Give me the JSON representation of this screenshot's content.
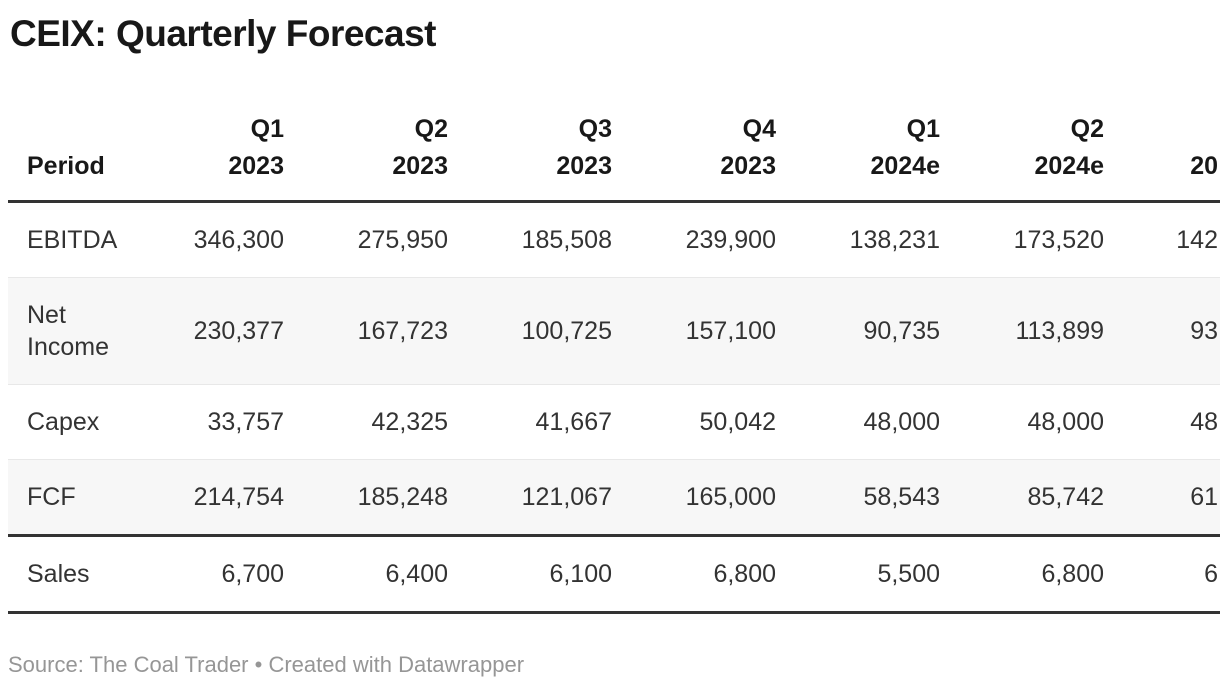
{
  "title": "CEIX: Quarterly Forecast",
  "table": {
    "period_header": "Period",
    "columns": [
      {
        "quarter": "Q1",
        "year": "2023",
        "clipped": false
      },
      {
        "quarter": "Q2",
        "year": "2023",
        "clipped": false
      },
      {
        "quarter": "Q3",
        "year": "2023",
        "clipped": false
      },
      {
        "quarter": "Q4",
        "year": "2023",
        "clipped": false
      },
      {
        "quarter": "Q1",
        "year": "2024e",
        "clipped": false
      },
      {
        "quarter": "Q2",
        "year": "2024e",
        "clipped": false
      },
      {
        "quarter": "",
        "year": "20",
        "clipped": true
      }
    ],
    "rows": [
      {
        "label": "EBITDA",
        "values": [
          "346,300",
          "275,950",
          "185,508",
          "239,900",
          "138,231",
          "173,520",
          "142"
        ],
        "separator": "thin"
      },
      {
        "label": "Net Income",
        "values": [
          "230,377",
          "167,723",
          "100,725",
          "157,100",
          "90,735",
          "113,899",
          "93"
        ],
        "separator": "thin"
      },
      {
        "label": "Capex",
        "values": [
          "33,757",
          "42,325",
          "41,667",
          "50,042",
          "48,000",
          "48,000",
          "48"
        ],
        "separator": "thin"
      },
      {
        "label": "FCF",
        "values": [
          "214,754",
          "185,248",
          "121,067",
          "165,000",
          "58,543",
          "85,742",
          "61"
        ],
        "separator": "thick"
      },
      {
        "label": "Sales",
        "values": [
          "6,700",
          "6,400",
          "6,100",
          "6,800",
          "5,500",
          "6,800",
          "6"
        ],
        "separator": "thick"
      }
    ]
  },
  "footer": {
    "source_prefix": "Source: ",
    "source_name": "The Coal Trader",
    "separator": " • ",
    "attribution": "Created with Datawrapper"
  },
  "colors": {
    "heading_text": "#181818",
    "body_text": "#333333",
    "accent_border": "#333333",
    "stripe": "#f7f7f7",
    "thin_separator": "#e8e8e8",
    "footer_text": "#969696"
  },
  "chart_data": {
    "type": "table",
    "title": "CEIX: Quarterly Forecast",
    "categories": [
      "Q1 2023",
      "Q2 2023",
      "Q3 2023",
      "Q4 2023",
      "Q1 2024e",
      "Q2 2024e"
    ],
    "series": [
      {
        "name": "EBITDA",
        "values": [
          346300,
          275950,
          185508,
          239900,
          138231,
          173520
        ]
      },
      {
        "name": "Net Income",
        "values": [
          230377,
          167723,
          100725,
          157100,
          90735,
          113899
        ]
      },
      {
        "name": "Capex",
        "values": [
          33757,
          42325,
          41667,
          50042,
          48000,
          48000
        ]
      },
      {
        "name": "FCF",
        "values": [
          214754,
          185248,
          121067,
          165000,
          58543,
          85742
        ]
      },
      {
        "name": "Sales",
        "values": [
          6700,
          6400,
          6100,
          6800,
          5500,
          6800
        ]
      }
    ],
    "clipped_last_column": {
      "header_visible": "20",
      "values_visible": [
        "142",
        "93",
        "48",
        "61",
        "6"
      ]
    },
    "row_striping": "even rows shaded",
    "source": "The Coal Trader",
    "attribution": "Created with Datawrapper"
  }
}
